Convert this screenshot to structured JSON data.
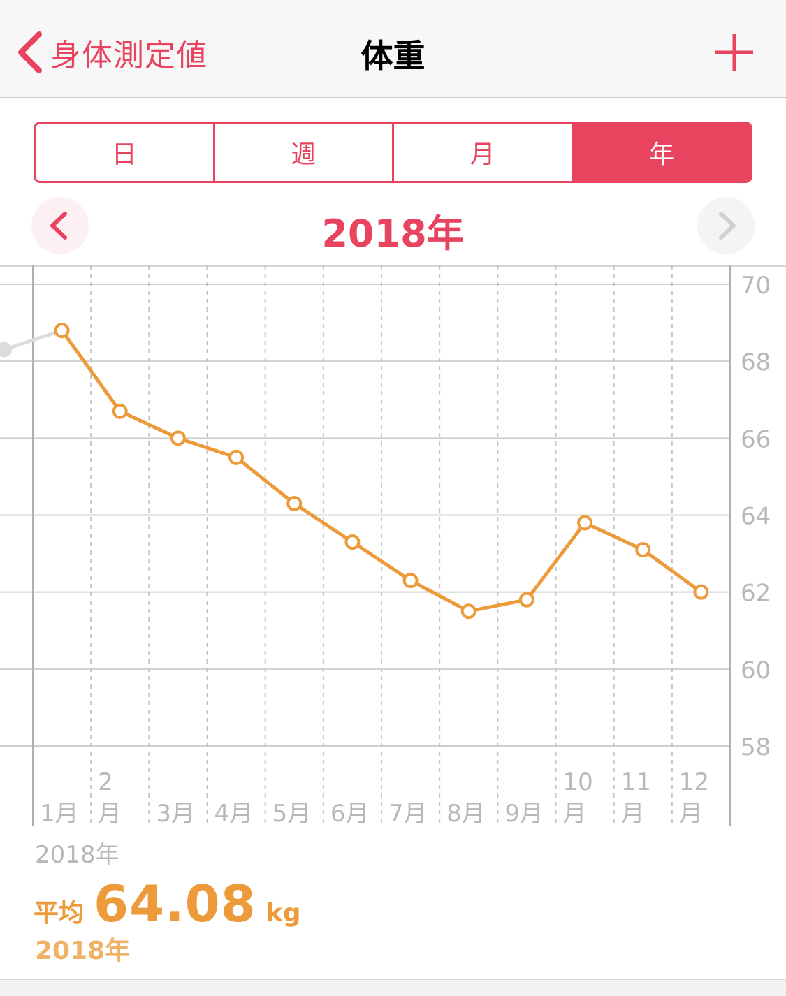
{
  "navbar": {
    "back_label": "身体測定値",
    "title": "体重",
    "add_icon": "plus-icon",
    "back_icon": "chevron-left-icon"
  },
  "segments": [
    {
      "label": "日",
      "active": false
    },
    {
      "label": "週",
      "active": false
    },
    {
      "label": "月",
      "active": false
    },
    {
      "label": "年",
      "active": true
    }
  ],
  "period": {
    "title": "2018年",
    "prev_icon": "chevron-left-icon",
    "next_icon": "chevron-right-icon"
  },
  "colors": {
    "accent": "#e8435f",
    "series": "#ec9a3a",
    "grid": "#cfcfcf",
    "muted": "#b8b8b8"
  },
  "chart_data": {
    "type": "line",
    "x_tick_labels": [
      {
        "top": "",
        "bottom": "1月"
      },
      {
        "top": "2",
        "bottom": "月"
      },
      {
        "top": "",
        "bottom": "3月"
      },
      {
        "top": "",
        "bottom": "4月"
      },
      {
        "top": "",
        "bottom": "5月"
      },
      {
        "top": "",
        "bottom": "6月"
      },
      {
        "top": "",
        "bottom": "7月"
      },
      {
        "top": "",
        "bottom": "8月"
      },
      {
        "top": "",
        "bottom": "9月"
      },
      {
        "top": "10",
        "bottom": "月"
      },
      {
        "top": "11",
        "bottom": "月"
      },
      {
        "top": "12",
        "bottom": "月"
      }
    ],
    "y_ticks": [
      70,
      68,
      66,
      64,
      62,
      60,
      58
    ],
    "ylim": [
      58,
      70
    ],
    "previous_value": 68.3,
    "series": [
      {
        "values": [
          68.8,
          66.7,
          66.0,
          65.5,
          64.3,
          63.3,
          62.3,
          61.5,
          61.8,
          63.8,
          63.1,
          62.0
        ]
      }
    ]
  },
  "summary": {
    "range_label": "2018年",
    "avg_label": "平均",
    "avg_value": "64.08",
    "unit": "kg",
    "period": "2018年"
  }
}
